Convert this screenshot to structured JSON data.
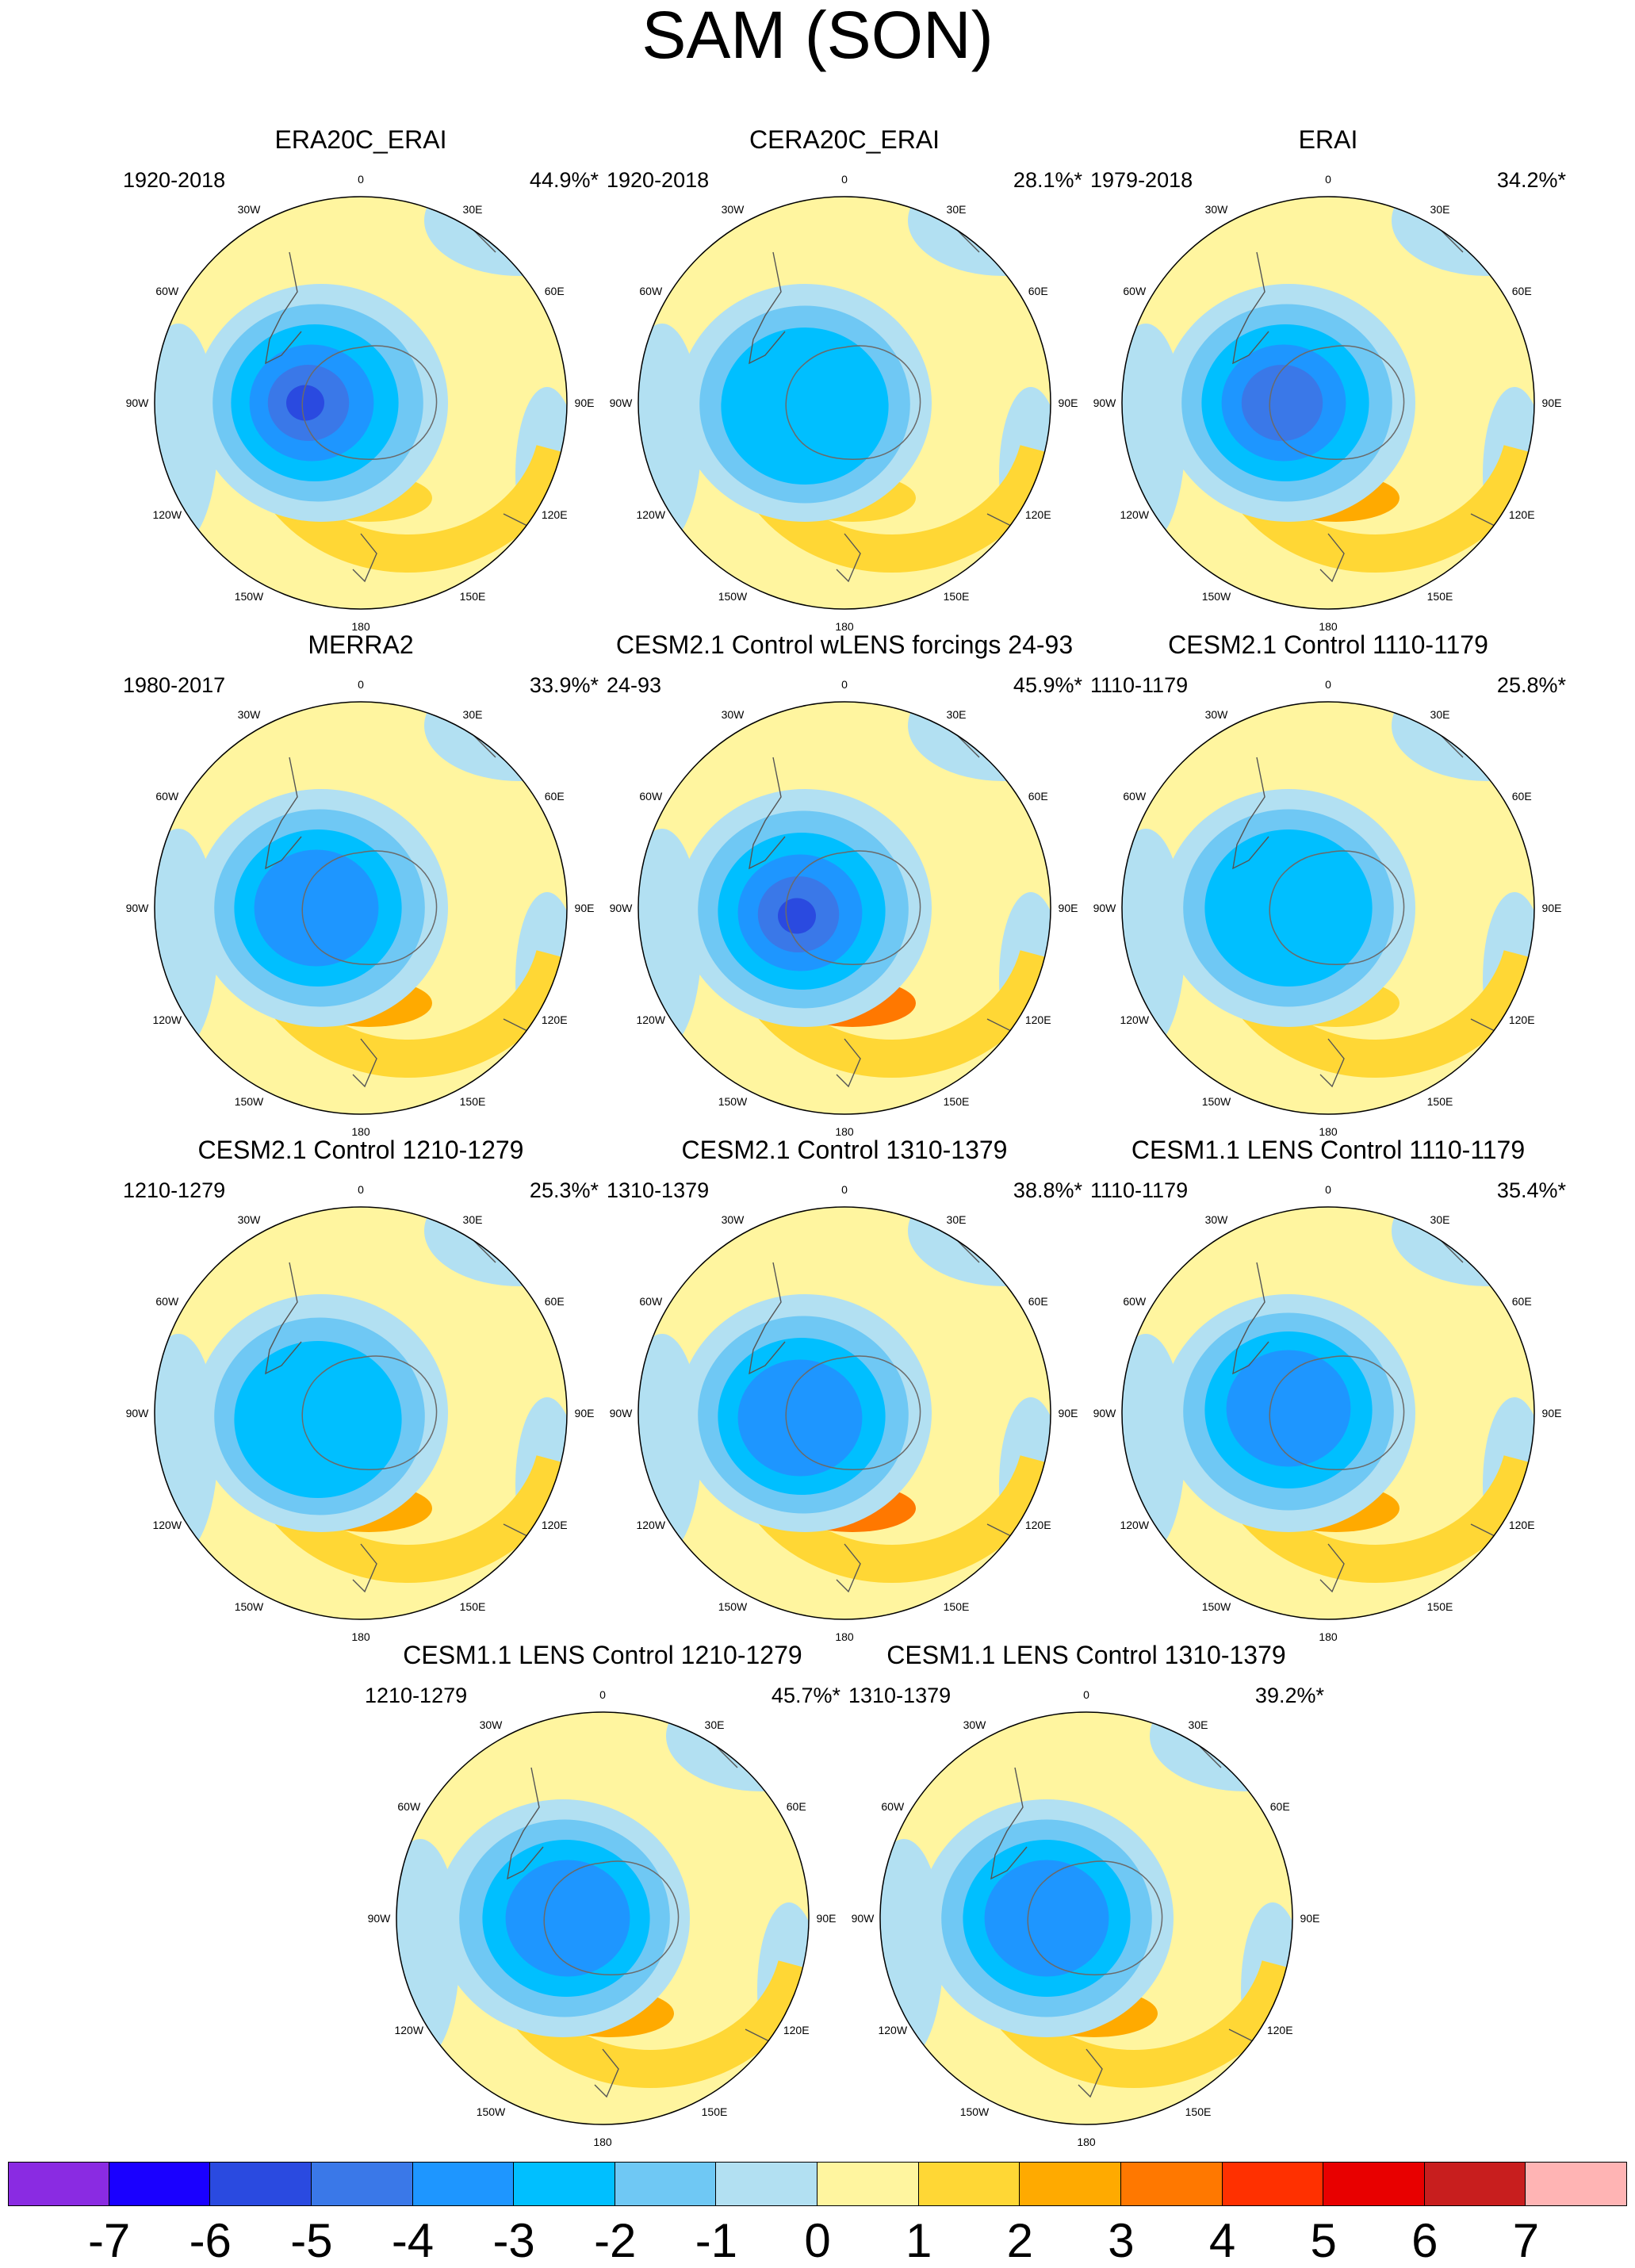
{
  "title": "SAM (SON)",
  "lon_labels": [
    "0",
    "30E",
    "60E",
    "90E",
    "120E",
    "150E",
    "180",
    "150W",
    "120W",
    "90W",
    "60W",
    "30W"
  ],
  "panels": [
    {
      "title": "ERA20C_ERAI",
      "period": "1920-2018",
      "percent": "44.9%*"
    },
    {
      "title": "CERA20C_ERAI",
      "period": "1920-2018",
      "percent": "28.1%*"
    },
    {
      "title": "ERAI",
      "period": "1979-2018",
      "percent": "34.2%*"
    },
    {
      "title": "MERRA2",
      "period": "1980-2017",
      "percent": "33.9%*"
    },
    {
      "title": "CESM2.1 Control wLENS forcings 24-93",
      "period": "24-93",
      "percent": "45.9%*"
    },
    {
      "title": "CESM2.1 Control 1110-1179",
      "period": "1110-1179",
      "percent": "25.8%*"
    },
    {
      "title": "CESM2.1 Control 1210-1279",
      "period": "1210-1279",
      "percent": "25.3%*"
    },
    {
      "title": "CESM2.1 Control 1310-1379",
      "period": "1310-1379",
      "percent": "38.8%*"
    },
    {
      "title": "CESM1.1 LENS Control 1110-1179",
      "period": "1110-1179",
      "percent": "35.4%*"
    },
    {
      "title": "CESM1.1 LENS Control 1210-1279",
      "period": "1210-1279",
      "percent": "45.7%*"
    },
    {
      "title": "CESM1.1 LENS Control 1310-1379",
      "period": "1310-1379",
      "percent": "39.2%*"
    }
  ],
  "colorbar": {
    "labels": [
      "-7",
      "-6",
      "-5",
      "-4",
      "-3",
      "-2",
      "-1",
      "0",
      "1",
      "2",
      "3",
      "4",
      "5",
      "6",
      "7"
    ],
    "colors": [
      "#8a2be2",
      "#1a00ff",
      "#2a4ae0",
      "#3a78e8",
      "#1e96ff",
      "#00bfff",
      "#6fc8f4",
      "#b2e0f2",
      "#fff59f",
      "#ffd735",
      "#ffaa00",
      "#ff7800",
      "#ff3000",
      "#e80000",
      "#c81e1e",
      "#ffb4b4"
    ]
  }
}
